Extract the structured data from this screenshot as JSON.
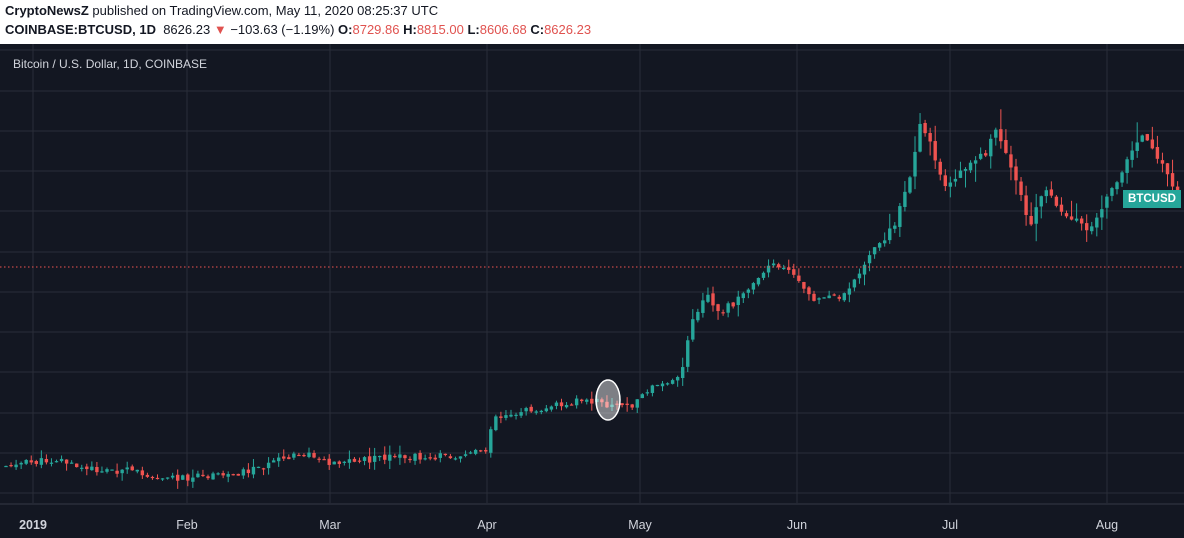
{
  "header": {
    "publisher": "CryptoNewsZ",
    "published_text": "published on TradingView.com, May 11, 2020 08:25:37 UTC",
    "symbol": "COINBASE:BTCUSD, 1D",
    "last_price": "8626.23",
    "change_arrow": "▼",
    "change_text": "−103.63 (−1.19%)",
    "ohlc": [
      {
        "label": "O:",
        "value": "8729.86"
      },
      {
        "label": "H:",
        "value": "8815.00"
      },
      {
        "label": "L:",
        "value": "8606.68"
      },
      {
        "label": "C:",
        "value": "8626.23"
      }
    ]
  },
  "chart_data": {
    "type": "candlestick",
    "title": "Bitcoin / U.S. Dollar, 1D, COINBASE",
    "x_tick_labels": [
      "2019",
      "Feb",
      "Mar",
      "Apr",
      "May",
      "Jun",
      "Jul",
      "Aug"
    ],
    "price_line_label": "BTCUSD",
    "grid": true,
    "colors": {
      "up": "#26a69a",
      "down": "#ef5350",
      "background": "#131722",
      "grid": "#2a2e39",
      "price_line": "#ef5350"
    }
  }
}
